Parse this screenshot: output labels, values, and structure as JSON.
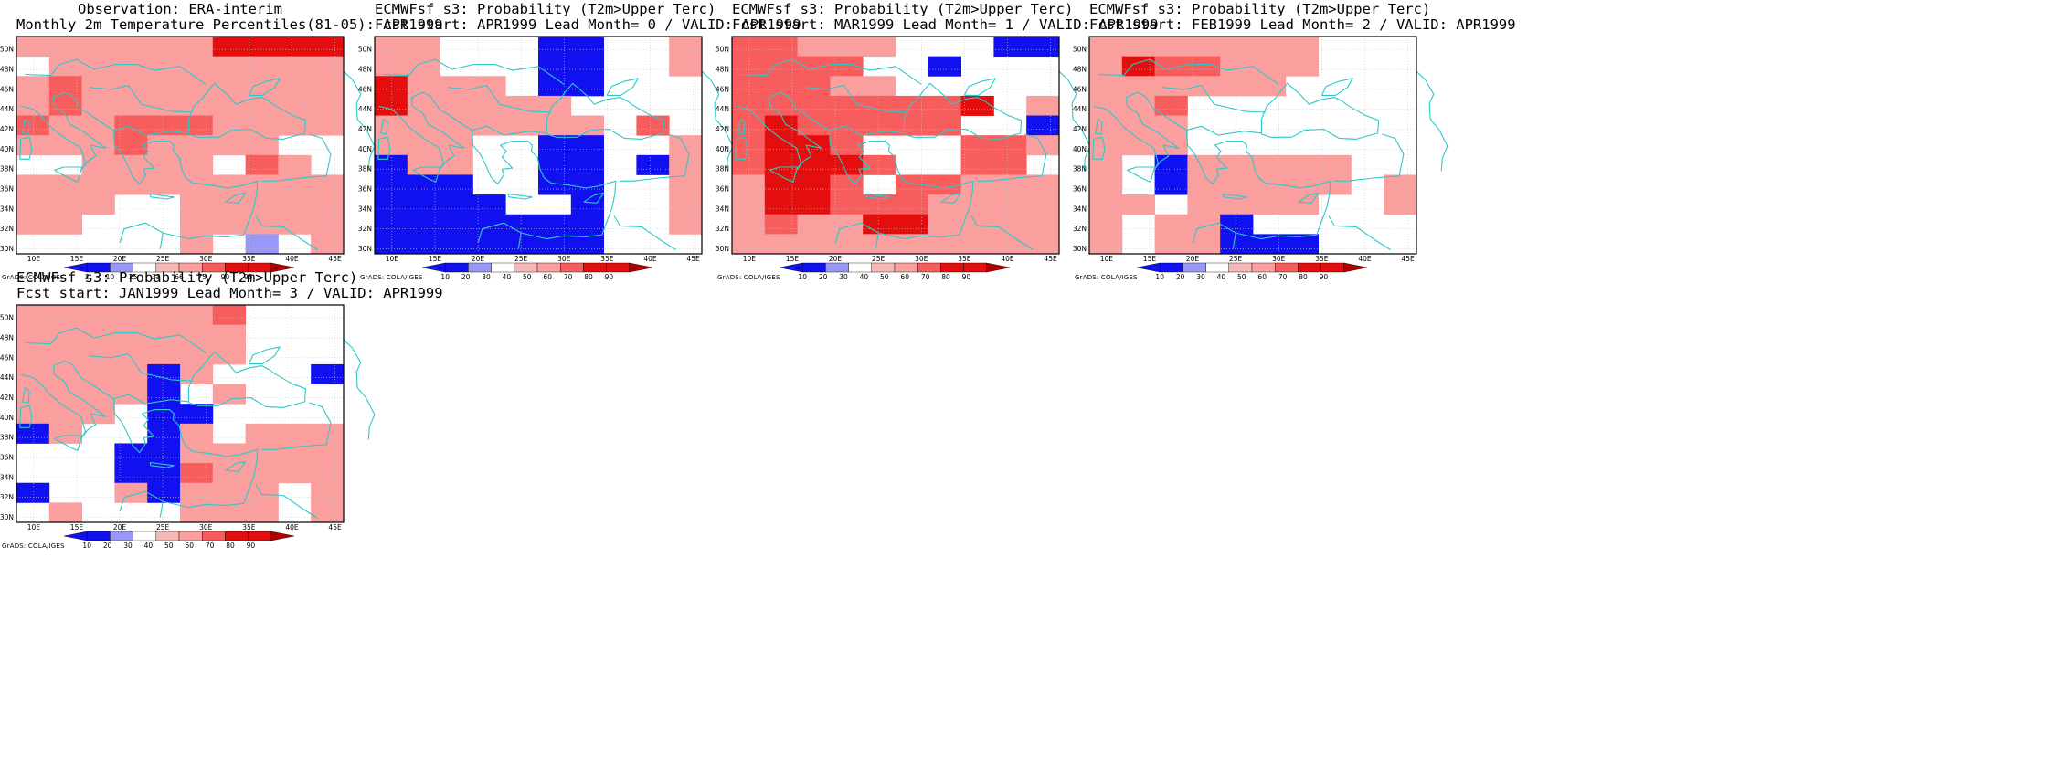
{
  "colors": {
    "coast": "#2ec8c8",
    "grid": "#c8c8c8",
    "red_strong": "#e40e0e",
    "red_medium": "#f75d5d",
    "red_light": "#fa9e9e",
    "red_soft": "#f7b7b7",
    "blue": "#1010f0",
    "blue_light": "#9898f7"
  },
  "axes": {
    "lon_labels": [
      "10E",
      "15E",
      "20E",
      "25E",
      "30E",
      "35E",
      "40E",
      "45E"
    ],
    "lat_labels": [
      "50N",
      "48N",
      "46N",
      "44N",
      "42N",
      "40N",
      "38N",
      "36N",
      "34N",
      "32N",
      "30N"
    ]
  },
  "credit": "GrADS: COLA/IGES",
  "colorbars": {
    "obs": {
      "ticks": [
        "2",
        "10",
        "25",
        "33",
        "66",
        "75",
        "90",
        "98"
      ]
    },
    "prob": {
      "ticks": [
        "10",
        "20",
        "30",
        "40",
        "50",
        "60",
        "70",
        "80",
        "90"
      ]
    }
  },
  "panels": [
    {
      "title_line1": "Observation: ERA-interim",
      "title_line2": "Monthly 2m Temperature Percentiles(81-05): APR1999",
      "colorbar": "obs",
      "grid_legend": "0 white, 1 light, 2 medium, 3 strong, 4 blue, 5 light blue",
      "grid": [
        "1111113333",
        "0111111111",
        "1211111111",
        "1211111111",
        "2112221111",
        "1112111100",
        "0011110210",
        "1111111111",
        "1110011111",
        "1100011111",
        "0000010501"
      ]
    },
    {
      "title_line1": "ECMWFsf s3: Probability (T2m>Upper Terc)",
      "title_line2": "Fcst start: APR1999   Lead Month= 0 / VALID: APR1999",
      "colorbar": "prob",
      "grid": [
        "1100044001",
        "1100044001",
        "3111044000",
        "3111110000",
        "1111111020",
        "1110044001",
        "4110044041",
        "4440044001",
        "4444004001",
        "4444444001",
        "4444444000"
      ]
    },
    {
      "title_line1": "ECMWFsf s3: Probability (T2m>Upper Terc)",
      "title_line2": "Fcst start: MAR1999   Lead Month= 1 / VALID: APR1999",
      "colorbar": "prob",
      "grid": [
        "2211100044",
        "2222004000",
        "2221100000",
        "2222222301",
        "2322222004",
        "2332000221",
        "2333200220",
        "1332022111",
        "1332221111",
        "1211331111",
        "1111111111"
      ]
    },
    {
      "title_line1": "ECMWFsf s3: Probability (T2m>Upper Terc)",
      "title_line2": "Fcst start: FEB1999   Lead Month= 2 / VALID: APR1999",
      "colorbar": "prob",
      "grid": [
        "1111111000",
        "1322111000",
        "1111110000",
        "1120000000",
        "1110000000",
        "1110000000",
        "1041111100",
        "1041111101",
        "1101111001",
        "1011400000",
        "1011444000"
      ]
    },
    {
      "title_line1": "ECMWFsf s3: Probability (T2m>Upper Terc)",
      "title_line2": "Fcst start: JAN1999   Lead Month= 3 / VALID: APR1999",
      "colorbar": "prob",
      "grid": [
        "1111112000",
        "1111111000",
        "1111111000",
        "1111410004",
        "1111401000",
        "1110440000",
        "4100410111",
        "0004411111",
        "0004421111",
        "4001411101",
        "0100011101"
      ]
    }
  ]
}
